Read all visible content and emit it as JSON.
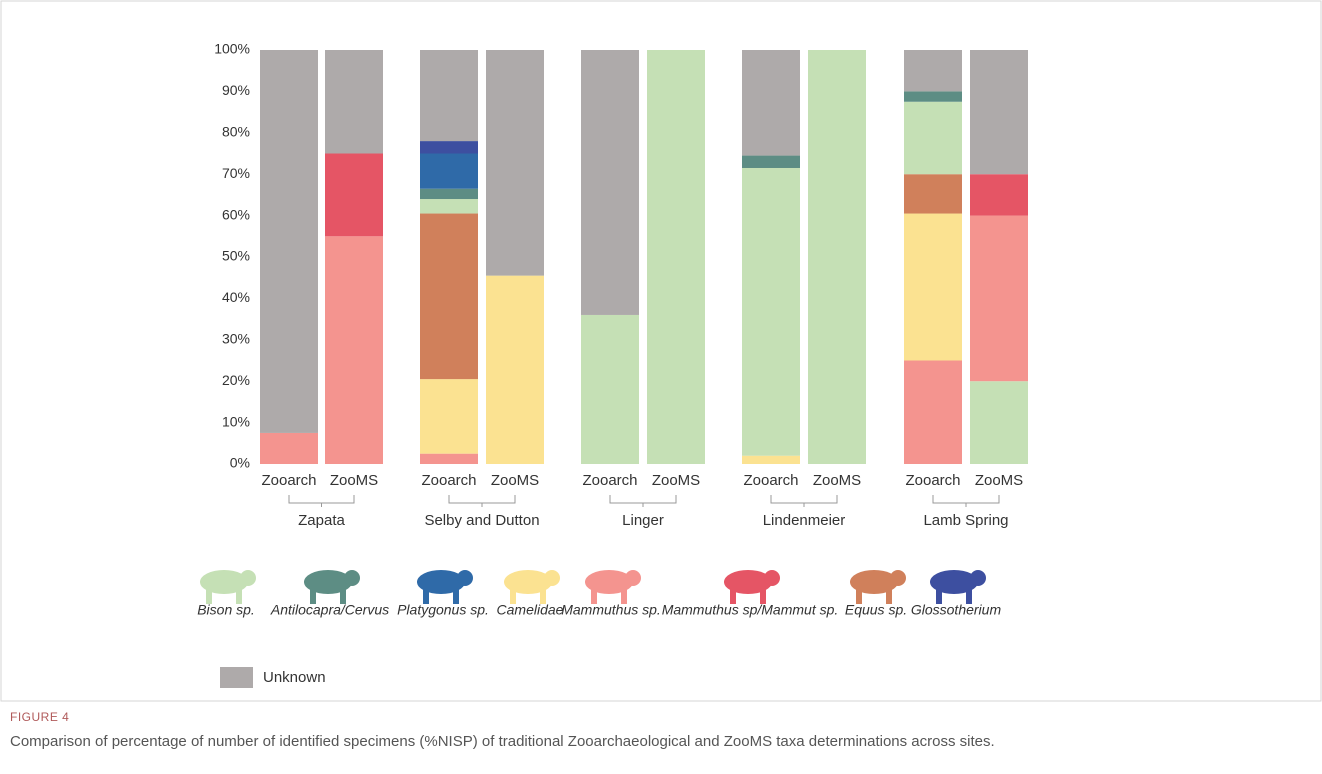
{
  "chart_data": {
    "type": "stacked-bar",
    "caption_label": "FIGURE 4",
    "caption": "Comparison of percentage of number of identified specimens (%NISP) of traditional Zooarchaeological and ZooMS taxa determinations across sites.",
    "categories": [
      "Zooarch",
      "ZooMS",
      "Zooarch",
      "ZooMS",
      "Zooarch",
      "ZooMS",
      "Zooarch",
      "ZooMS",
      "Zooarch",
      "ZooMS"
    ],
    "groups": [
      "Zapata",
      "Selby and Dutton",
      "Linger",
      "Lindenmeier",
      "Lamb Spring"
    ],
    "ylim": [
      0,
      100
    ],
    "yticks": [
      {
        "value": 0,
        "label": "0%"
      },
      {
        "value": 10,
        "label": "10%"
      },
      {
        "value": 20,
        "label": "20%"
      },
      {
        "value": 30,
        "label": "30%"
      },
      {
        "value": 40,
        "label": "40%"
      },
      {
        "value": 50,
        "label": "50%"
      },
      {
        "value": 60,
        "label": "60%"
      },
      {
        "value": 70,
        "label": "70%"
      },
      {
        "value": 80,
        "label": "80%"
      },
      {
        "value": 90,
        "label": "90%"
      },
      {
        "value": 100,
        "label": "100%"
      }
    ],
    "series": [
      {
        "name": "Mammuthus sp.",
        "color": "#f4948f",
        "values": [
          7.5,
          55,
          2.5,
          0,
          0,
          0,
          0,
          0,
          25,
          40
        ]
      },
      {
        "name": "Mammuthus sp/Mammut sp.",
        "color": "#e55565",
        "values": [
          0,
          20,
          0,
          0,
          0,
          0,
          0,
          0,
          0,
          10
        ]
      },
      {
        "name": "Camelidae",
        "color": "#fbe291",
        "values": [
          0,
          0,
          18,
          45.5,
          0,
          0,
          2,
          0,
          35.5,
          0
        ]
      },
      {
        "name": "Equus sp.",
        "color": "#d0805b",
        "values": [
          0,
          0,
          40,
          0,
          0,
          0,
          0,
          0,
          9.5,
          0
        ]
      },
      {
        "name": "Bison sp.",
        "color": "#c5e0b5",
        "values": [
          0,
          0,
          3.5,
          0,
          36,
          100,
          69.5,
          100,
          17.5,
          20
        ]
      },
      {
        "name": "Antilocapra/Cervus",
        "color": "#5d8d84",
        "values": [
          0,
          0,
          2.5,
          0,
          0,
          0,
          3,
          0,
          2.5,
          0
        ]
      },
      {
        "name": "Platygonus sp.",
        "color": "#2f6aa8",
        "values": [
          0,
          0,
          8.5,
          0,
          0,
          0,
          0,
          0,
          0,
          0
        ]
      },
      {
        "name": "Glossotherium",
        "color": "#3d4fa0",
        "values": [
          0,
          0,
          3,
          0,
          0,
          0,
          0,
          0,
          0,
          0
        ]
      },
      {
        "name": "Unknown",
        "color": "#aeaaaa",
        "values": [
          92.5,
          25,
          22,
          54.5,
          64,
          0,
          25.5,
          0,
          10,
          30
        ]
      }
    ]
  }
}
